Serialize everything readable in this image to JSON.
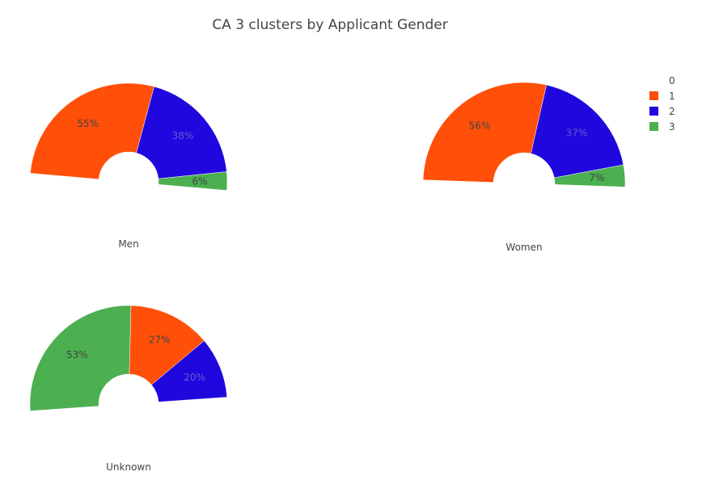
{
  "chart_data": {
    "type": "pie",
    "title": "CA 3 clusters by Applicant Gender",
    "legend": {
      "position": "top-right",
      "entries": [
        {
          "label": "0",
          "color": null
        },
        {
          "label": "1",
          "color": "#ff4f09"
        },
        {
          "label": "2",
          "color": "#1f07de"
        },
        {
          "label": "3",
          "color": "#4caf50"
        }
      ]
    },
    "charts": [
      {
        "name": "Men",
        "slices": [
          {
            "label": "1",
            "value": 55,
            "text": "55%",
            "color": "#ff4f09"
          },
          {
            "label": "2",
            "value": 38,
            "text": "38%",
            "color": "#1f07de"
          },
          {
            "label": "3",
            "value": 6,
            "text": "6%",
            "color": "#4caf50"
          }
        ]
      },
      {
        "name": "Women",
        "slices": [
          {
            "label": "1",
            "value": 56,
            "text": "56%",
            "color": "#ff4f09"
          },
          {
            "label": "2",
            "value": 37,
            "text": "37%",
            "color": "#1f07de"
          },
          {
            "label": "3",
            "value": 7,
            "text": "7%",
            "color": "#4caf50"
          }
        ]
      },
      {
        "name": "Unknown",
        "slices": [
          {
            "label": "3",
            "value": 53,
            "text": "53%",
            "color": "#4caf50"
          },
          {
            "label": "1",
            "value": 27,
            "text": "27%",
            "color": "#ff4f09"
          },
          {
            "label": "2",
            "value": 20,
            "text": "20%",
            "color": "#1f07de"
          }
        ]
      }
    ]
  }
}
